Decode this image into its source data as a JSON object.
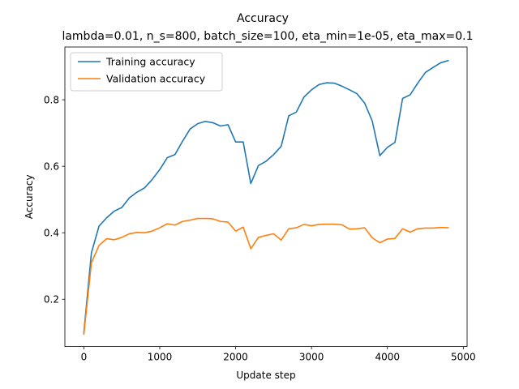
{
  "chart_data": {
    "type": "line",
    "title": "Accuracy",
    "subtitle": "lambda=0.01, n_s=800, batch_size=100, eta_min=1e-05, eta_max=0.1",
    "xlabel": "Update step",
    "ylabel": "Accuracy",
    "xlim": [
      -250,
      5050
    ],
    "ylim": [
      0.0578,
      0.9587
    ],
    "xticks": [
      0,
      1000,
      2000,
      3000,
      4000,
      5000
    ],
    "xtick_labels": [
      "0",
      "1000",
      "2000",
      "3000",
      "4000",
      "5000"
    ],
    "yticks": [
      0.2,
      0.4,
      0.6,
      0.8
    ],
    "ytick_labels": [
      "0.2",
      "0.4",
      "0.6",
      "0.8"
    ],
    "grid": false,
    "legend_position": "top-left",
    "x": [
      0,
      100,
      200,
      300,
      400,
      500,
      600,
      700,
      800,
      900,
      1000,
      1100,
      1200,
      1300,
      1400,
      1500,
      1600,
      1700,
      1800,
      1900,
      2000,
      2100,
      2200,
      2300,
      2400,
      2500,
      2600,
      2700,
      2800,
      2900,
      3000,
      3100,
      3200,
      3300,
      3400,
      3500,
      3600,
      3700,
      3800,
      3900,
      4000,
      4100,
      4200,
      4300,
      4400,
      4500,
      4600,
      4700,
      4800
    ],
    "series": [
      {
        "name": "Training accuracy",
        "color": "#1f77b4",
        "values": [
          0.1,
          0.34,
          0.42,
          0.445,
          0.465,
          0.476,
          0.505,
          0.522,
          0.535,
          0.56,
          0.59,
          0.626,
          0.635,
          0.675,
          0.712,
          0.728,
          0.735,
          0.731,
          0.721,
          0.725,
          0.673,
          0.673,
          0.548,
          0.602,
          0.615,
          0.635,
          0.66,
          0.752,
          0.763,
          0.808,
          0.83,
          0.846,
          0.851,
          0.85,
          0.841,
          0.83,
          0.818,
          0.79,
          0.736,
          0.632,
          0.657,
          0.672,
          0.804,
          0.815,
          0.85,
          0.882,
          0.897,
          0.911,
          0.918
        ]
      },
      {
        "name": "Validation accuracy",
        "color": "#ff7f0e",
        "values": [
          0.095,
          0.31,
          0.362,
          0.382,
          0.379,
          0.386,
          0.397,
          0.401,
          0.4,
          0.405,
          0.415,
          0.427,
          0.423,
          0.434,
          0.438,
          0.443,
          0.443,
          0.442,
          0.434,
          0.432,
          0.405,
          0.417,
          0.352,
          0.386,
          0.392,
          0.397,
          0.378,
          0.412,
          0.415,
          0.425,
          0.421,
          0.425,
          0.426,
          0.426,
          0.424,
          0.411,
          0.412,
          0.415,
          0.385,
          0.37,
          0.381,
          0.383,
          0.412,
          0.402,
          0.412,
          0.414,
          0.414,
          0.416,
          0.415
        ]
      }
    ]
  }
}
